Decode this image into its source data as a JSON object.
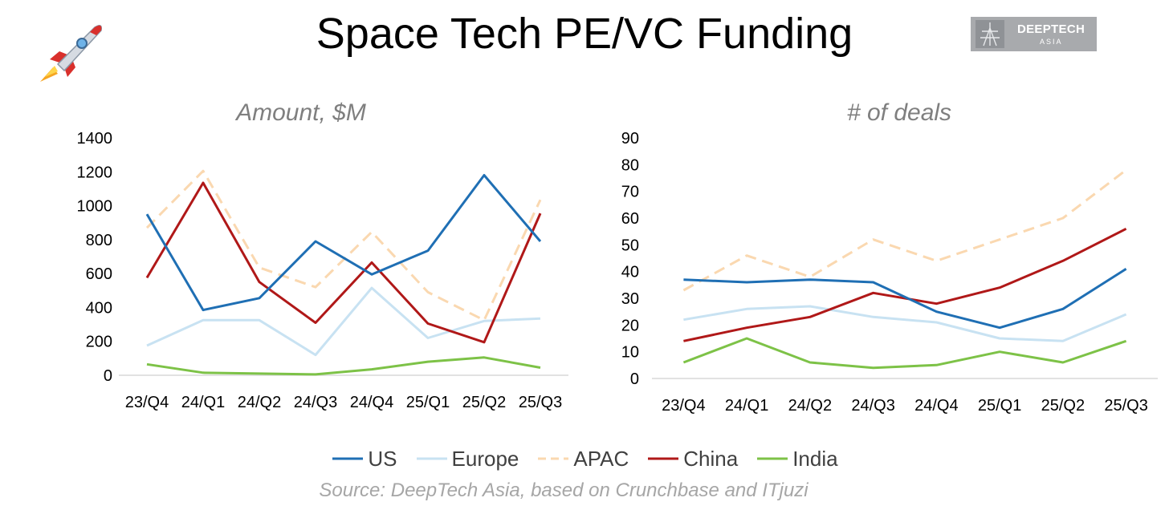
{
  "page": {
    "title": "Space Tech PE/VC Funding",
    "source": "Source: DeepTech Asia, based on Crunchbase and ITjuzi",
    "logo": {
      "line1": "DEEPTECH",
      "line2": "ASIA"
    },
    "icons": [
      "rocket-icon",
      "deeptech-asia-logo"
    ]
  },
  "legend": [
    {
      "name": "US",
      "color": "#1f6fb4",
      "dash": "solid"
    },
    {
      "name": "Europe",
      "color": "#c8e2f2",
      "dash": "solid"
    },
    {
      "name": "APAC",
      "color": "#fad8b0",
      "dash": "dashed"
    },
    {
      "name": "China",
      "color": "#b01818",
      "dash": "solid"
    },
    {
      "name": "India",
      "color": "#7dc247",
      "dash": "solid"
    }
  ],
  "chart_data": [
    {
      "type": "line",
      "title": "Amount, $M",
      "xlabel": "",
      "ylabel": "",
      "categories": [
        "23/Q4",
        "24/Q1",
        "24/Q2",
        "24/Q3",
        "24/Q4",
        "25/Q1",
        "25/Q2",
        "25/Q3"
      ],
      "ylim": [
        0,
        1400
      ],
      "yticks": [
        0,
        200,
        400,
        600,
        800,
        1000,
        1200,
        1400
      ],
      "series": [
        {
          "name": "US",
          "values": [
            950,
            385,
            455,
            790,
            595,
            735,
            1180,
            790
          ]
        },
        {
          "name": "Europe",
          "values": [
            175,
            325,
            325,
            120,
            515,
            220,
            320,
            335
          ]
        },
        {
          "name": "APAC",
          "values": [
            870,
            1205,
            635,
            520,
            845,
            490,
            325,
            1035
          ]
        },
        {
          "name": "China",
          "values": [
            575,
            1135,
            550,
            310,
            665,
            305,
            195,
            955
          ]
        },
        {
          "name": "India",
          "values": [
            65,
            15,
            10,
            5,
            35,
            80,
            105,
            45
          ]
        }
      ]
    },
    {
      "type": "line",
      "title": "# of deals",
      "xlabel": "",
      "ylabel": "",
      "categories": [
        "23/Q4",
        "24/Q1",
        "24/Q2",
        "24/Q3",
        "24/Q4",
        "25/Q1",
        "25/Q2",
        "25/Q3"
      ],
      "ylim": [
        0,
        90
      ],
      "yticks": [
        0,
        10,
        20,
        30,
        40,
        50,
        60,
        70,
        80,
        90
      ],
      "series": [
        {
          "name": "US",
          "values": [
            37,
            36,
            37,
            36,
            25,
            19,
            26,
            41
          ]
        },
        {
          "name": "Europe",
          "values": [
            22,
            26,
            27,
            23,
            21,
            15,
            14,
            24
          ]
        },
        {
          "name": "APAC",
          "values": [
            33,
            46,
            38,
            52,
            44,
            52,
            60,
            78
          ]
        },
        {
          "name": "China",
          "values": [
            14,
            19,
            23,
            32,
            28,
            34,
            44,
            56
          ]
        },
        {
          "name": "India",
          "values": [
            6,
            15,
            6,
            4,
            5,
            10,
            6,
            14
          ]
        }
      ]
    }
  ]
}
